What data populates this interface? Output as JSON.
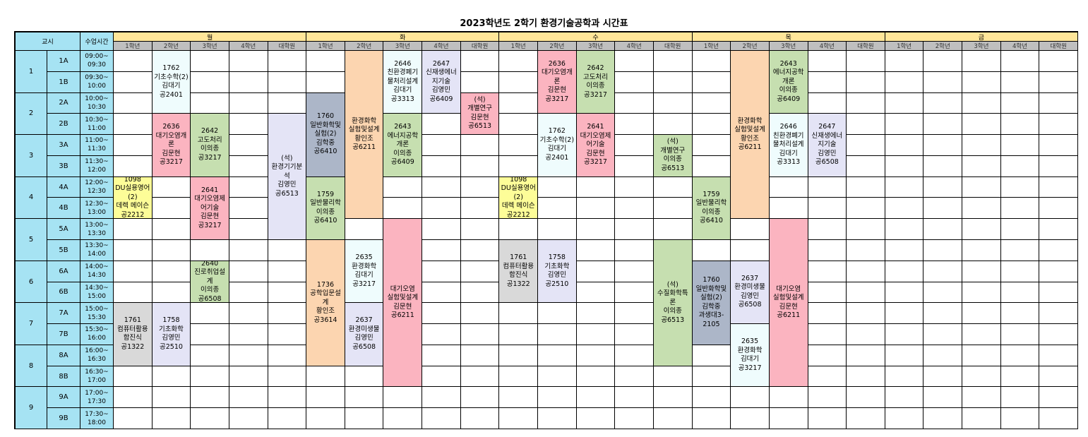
{
  "title": "2023학년도 2학기 환경기술공학과 시간표",
  "header": {
    "period_label": "교시",
    "time_label": "수업시간"
  },
  "days": [
    "월",
    "화",
    "수",
    "목",
    "금"
  ],
  "grades": [
    "1학년",
    "2학년",
    "3학년",
    "4학년",
    "대학원"
  ],
  "periods": [
    {
      "num": "1",
      "slots": [
        {
          "label": "1A",
          "time": "09:00~\n09:30"
        },
        {
          "label": "1B",
          "time": "09:30~\n10:00"
        }
      ]
    },
    {
      "num": "2",
      "slots": [
        {
          "label": "2A",
          "time": "10:00~\n10:30"
        },
        {
          "label": "2B",
          "time": "10:30~\n11:00"
        }
      ]
    },
    {
      "num": "3",
      "slots": [
        {
          "label": "3A",
          "time": "11:00~\n11:30"
        },
        {
          "label": "3B",
          "time": "11:30~\n12:00"
        }
      ]
    },
    {
      "num": "4",
      "slots": [
        {
          "label": "4A",
          "time": "12:00~\n12:30"
        },
        {
          "label": "4B",
          "time": "12:30~\n13:00"
        }
      ]
    },
    {
      "num": "5",
      "slots": [
        {
          "label": "5A",
          "time": "13:00~\n13:30"
        },
        {
          "label": "5B",
          "time": "13:30~\n14:00"
        }
      ]
    },
    {
      "num": "6",
      "slots": [
        {
          "label": "6A",
          "time": "14:00~\n14:30"
        },
        {
          "label": "6B",
          "time": "14:30~\n15:00"
        }
      ]
    },
    {
      "num": "7",
      "slots": [
        {
          "label": "7A",
          "time": "15:00~\n15:30"
        },
        {
          "label": "7B",
          "time": "15:30~\n16:00"
        }
      ]
    },
    {
      "num": "8",
      "slots": [
        {
          "label": "8A",
          "time": "16:00~\n16:30"
        },
        {
          "label": "8B",
          "time": "16:30~\n17:00"
        }
      ]
    },
    {
      "num": "9",
      "slots": [
        {
          "label": "9A",
          "time": "17:00~\n17:30"
        },
        {
          "label": "9B",
          "time": "17:30~\n18:00"
        }
      ]
    }
  ],
  "colors": {
    "cyan": "#effcfd",
    "pink": "#fbb4c0",
    "green": "#c6dfb0",
    "lavender": "#e4e4f6",
    "yellow": "#fdfd98",
    "gray": "#d9d9d9",
    "slate": "#acb6c8",
    "peach": "#fcd5b0"
  },
  "courses": [
    {
      "day": "월",
      "grade": "2학년",
      "start": "1A",
      "end": "2A",
      "code": "1762",
      "title": "기초수학(2)",
      "prof": "김대기",
      "room": "공2401",
      "color": "cyan"
    },
    {
      "day": "월",
      "grade": "2학년",
      "start": "2B",
      "end": "3B",
      "code": "2636",
      "title": "대기오염개론",
      "prof": "김문현",
      "room": "공3217",
      "color": "pink"
    },
    {
      "day": "월",
      "grade": "3학년",
      "start": "2B",
      "end": "3B",
      "code": "2642",
      "title": "고도처리",
      "prof": "이의종",
      "room": "공3217",
      "color": "green"
    },
    {
      "day": "월",
      "grade": "대학원",
      "start": "2B",
      "end": "5A",
      "code": "(석)",
      "title": "환경기기분석",
      "prof": "김영민",
      "room": "공6513",
      "color": "lavender"
    },
    {
      "day": "월",
      "grade": "1학년",
      "start": "4A",
      "end": "4B",
      "code": "1098",
      "title": "DU실용영어(2)",
      "prof": "데렉 메이슨",
      "room": "공2212",
      "color": "yellow"
    },
    {
      "day": "월",
      "grade": "3학년",
      "start": "4A",
      "end": "5A",
      "code": "2641",
      "title": "대기오염제어기술",
      "prof": "김문현",
      "room": "공3217",
      "color": "pink"
    },
    {
      "day": "월",
      "grade": "3학년",
      "start": "6A",
      "end": "6B",
      "code": "2640",
      "title": "진로취업설계",
      "prof": "이의종",
      "room": "공6508",
      "color": "green"
    },
    {
      "day": "월",
      "grade": "1학년",
      "start": "7A",
      "end": "8A",
      "code": "1761",
      "title": "컴퓨터활용",
      "prof": "함진식",
      "room": "공1322",
      "color": "gray"
    },
    {
      "day": "월",
      "grade": "2학년",
      "start": "7A",
      "end": "8A",
      "code": "1758",
      "title": "기초화학",
      "prof": "김영민",
      "room": "공2510",
      "color": "lavender"
    },
    {
      "day": "화",
      "grade": "1학년",
      "start": "2A",
      "end": "3B",
      "code": "1760",
      "title": "일반화학및실험(2)",
      "prof": "김학중",
      "room": "공6410",
      "color": "slate"
    },
    {
      "day": "화",
      "grade": "1학년",
      "start": "4A",
      "end": "5A",
      "code": "1759",
      "title": "일반물리학",
      "prof": "이의종",
      "room": "공6410",
      "color": "green"
    },
    {
      "day": "화",
      "grade": "1학년",
      "start": "5B",
      "end": "8A",
      "code": "1736",
      "title": "공학입문설계",
      "prof": "황인조",
      "room": "공3614",
      "color": "peach"
    },
    {
      "day": "화",
      "grade": "2학년",
      "start": "1A",
      "end": "4B",
      "code": "",
      "title": "환경화학 실험및설계",
      "prof": "황인조",
      "room": "공6211",
      "color": "peach"
    },
    {
      "day": "화",
      "grade": "2학년",
      "start": "5B",
      "end": "6B",
      "code": "2635",
      "title": "환경화학",
      "prof": "김대기",
      "room": "공3217",
      "color": "cyan"
    },
    {
      "day": "화",
      "grade": "2학년",
      "start": "7A",
      "end": "8A",
      "code": "2637",
      "title": "환경미생물",
      "prof": "김영민",
      "room": "공6508",
      "color": "lavender"
    },
    {
      "day": "화",
      "grade": "3학년",
      "start": "1A",
      "end": "2A",
      "code": "2646",
      "title": "친환경폐기물처리설계",
      "prof": "김대기",
      "room": "공3313",
      "color": "cyan"
    },
    {
      "day": "화",
      "grade": "3학년",
      "start": "2B",
      "end": "3B",
      "code": "2643",
      "title": "에너지공학개론",
      "prof": "이의종",
      "room": "공6409",
      "color": "green"
    },
    {
      "day": "화",
      "grade": "3학년",
      "start": "5A",
      "end": "8B",
      "code": "",
      "title": "대기오염 실험및설계",
      "prof": "김문현",
      "room": "공6211",
      "color": "pink"
    },
    {
      "day": "화",
      "grade": "4학년",
      "start": "1A",
      "end": "2A",
      "code": "2647",
      "title": "신재생에너지기술",
      "prof": "김영민",
      "room": "공6409",
      "color": "lavender"
    },
    {
      "day": "화",
      "grade": "대학원",
      "start": "2A",
      "end": "2B",
      "code": "(석)",
      "title": "개별연구",
      "prof": "김문현",
      "room": "공6513",
      "color": "pink"
    },
    {
      "day": "수",
      "grade": "1학년",
      "start": "4A",
      "end": "4B",
      "code": "1098",
      "title": "DU실용영어(2)",
      "prof": "데렉 메이슨",
      "room": "공2212",
      "color": "yellow"
    },
    {
      "day": "수",
      "grade": "1학년",
      "start": "5B",
      "end": "6B",
      "code": "1761",
      "title": "컴퓨터활용",
      "prof": "함진식",
      "room": "공1322",
      "color": "gray"
    },
    {
      "day": "수",
      "grade": "2학년",
      "start": "1A",
      "end": "2A",
      "code": "2636",
      "title": "대기오염개론",
      "prof": "김문현",
      "room": "공3217",
      "color": "pink"
    },
    {
      "day": "수",
      "grade": "2학년",
      "start": "2B",
      "end": "3B",
      "code": "1762",
      "title": "기초수학(2)",
      "prof": "김대기",
      "room": "공2401",
      "color": "cyan"
    },
    {
      "day": "수",
      "grade": "2학년",
      "start": "5B",
      "end": "6B",
      "code": "1758",
      "title": "기초화학",
      "prof": "김영민",
      "room": "공2510",
      "color": "lavender"
    },
    {
      "day": "수",
      "grade": "3학년",
      "start": "1A",
      "end": "2A",
      "code": "2642",
      "title": "고도처리",
      "prof": "이의종",
      "room": "공3217",
      "color": "green"
    },
    {
      "day": "수",
      "grade": "3학년",
      "start": "2B",
      "end": "3B",
      "code": "2641",
      "title": "대기오염제어기술",
      "prof": "김문현",
      "room": "공3217",
      "color": "pink"
    },
    {
      "day": "수",
      "grade": "대학원",
      "start": "3A",
      "end": "3B",
      "code": "(석)",
      "title": "개별연구",
      "prof": "이의종",
      "room": "공6513",
      "color": "green"
    },
    {
      "day": "수",
      "grade": "대학원",
      "start": "5B",
      "end": "8A",
      "code": "(석)",
      "title": "수질화학특론",
      "prof": "이의종",
      "room": "공6513",
      "color": "green"
    },
    {
      "day": "목",
      "grade": "1학년",
      "start": "4A",
      "end": "5A",
      "code": "1759",
      "title": "일반물리학",
      "prof": "이의종",
      "room": "공6410",
      "color": "green"
    },
    {
      "day": "목",
      "grade": "1학년",
      "start": "6A",
      "end": "7B",
      "code": "1760",
      "title": "일반화학및실험(2)",
      "prof": "김학중",
      "room": "과생대3-2105",
      "color": "slate"
    },
    {
      "day": "목",
      "grade": "2학년",
      "start": "1A",
      "end": "4B",
      "code": "",
      "title": "환경화학 실험및설계",
      "prof": "황인조",
      "room": "공6211",
      "color": "peach"
    },
    {
      "day": "목",
      "grade": "2학년",
      "start": "6A",
      "end": "7A",
      "code": "2637",
      "title": "환경미생물",
      "prof": "김영민",
      "room": "공6508",
      "color": "lavender"
    },
    {
      "day": "목",
      "grade": "2학년",
      "start": "7B",
      "end": "8B",
      "code": "2635",
      "title": "환경화학",
      "prof": "김대기",
      "room": "공3217",
      "color": "cyan"
    },
    {
      "day": "목",
      "grade": "3학년",
      "start": "1A",
      "end": "2A",
      "code": "2643",
      "title": "에너지공학개론",
      "prof": "이의종",
      "room": "공6409",
      "color": "green"
    },
    {
      "day": "목",
      "grade": "3학년",
      "start": "2B",
      "end": "3B",
      "code": "2646",
      "title": "친환경폐기물처리설계",
      "prof": "김대기",
      "room": "공3313",
      "color": "cyan"
    },
    {
      "day": "목",
      "grade": "3학년",
      "start": "5A",
      "end": "8B",
      "code": "",
      "title": "대기오염 실험및설계",
      "prof": "김문현",
      "room": "공6211",
      "color": "pink"
    },
    {
      "day": "목",
      "grade": "4학년",
      "start": "2B",
      "end": "3B",
      "code": "2647",
      "title": "신재생에너지기술",
      "prof": "김영민",
      "room": "공6508",
      "color": "lavender"
    }
  ]
}
